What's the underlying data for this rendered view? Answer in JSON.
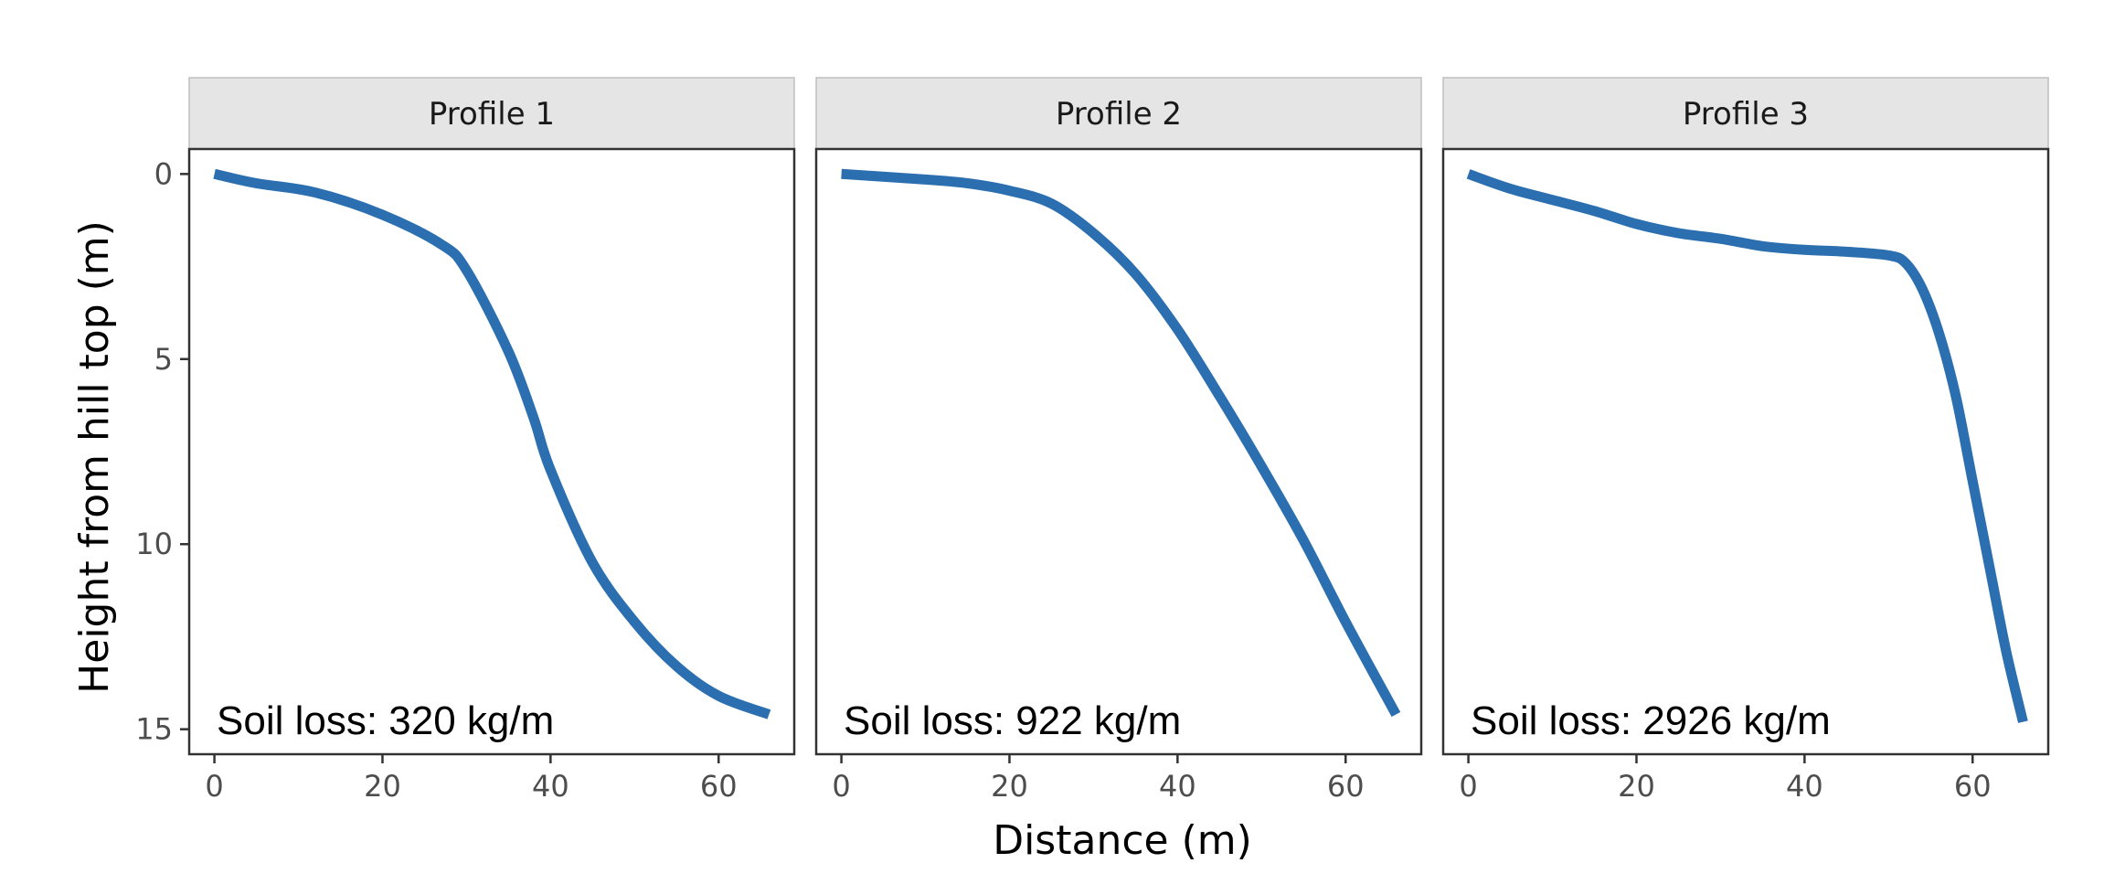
{
  "chart_data": {
    "type": "line",
    "xlabel": "Distance (m)",
    "ylabel": "Height from hill top (m)",
    "xlim": [
      -3,
      69
    ],
    "ylim": [
      0,
      15
    ],
    "y_reversed": true,
    "x_ticks": [
      0,
      20,
      40,
      60
    ],
    "x_tick_labels": [
      "0",
      "20",
      "40",
      "60"
    ],
    "y_ticks": [
      0,
      5,
      10,
      15
    ],
    "y_tick_labels": [
      "0",
      "5",
      "10",
      "15"
    ],
    "grid": false,
    "legend": "none",
    "line_color": "#2b6fb0",
    "panels": [
      {
        "title": "Profile 1",
        "annotation": "Soil loss: 320 kg/m",
        "x": [
          0,
          5,
          12,
          20,
          27,
          30,
          35,
          38,
          40,
          45,
          50,
          55,
          60,
          66
        ],
        "y": [
          0,
          0.25,
          0.5,
          1.1,
          1.9,
          2.6,
          4.8,
          6.6,
          8.0,
          10.5,
          12.1,
          13.3,
          14.1,
          14.6
        ]
      },
      {
        "title": "Profile 2",
        "annotation": "Soil loss: 922 kg/m",
        "x": [
          0,
          10,
          15,
          20,
          25,
          30,
          35,
          40,
          45,
          50,
          55,
          60,
          66
        ],
        "y": [
          0,
          0.15,
          0.25,
          0.45,
          0.8,
          1.6,
          2.7,
          4.2,
          6.0,
          7.9,
          9.9,
          12.1,
          14.6
        ]
      },
      {
        "title": "Profile 3",
        "annotation": "Soil loss: 2926 kg/m",
        "x": [
          0,
          5,
          10,
          15,
          20,
          25,
          30,
          35,
          40,
          45,
          50,
          52,
          54,
          56,
          58,
          60,
          62,
          64,
          66
        ],
        "y": [
          0,
          0.4,
          0.7,
          1.0,
          1.35,
          1.6,
          1.75,
          1.95,
          2.05,
          2.1,
          2.2,
          2.4,
          3.1,
          4.3,
          6.0,
          8.3,
          10.6,
          12.9,
          14.8
        ]
      }
    ]
  }
}
